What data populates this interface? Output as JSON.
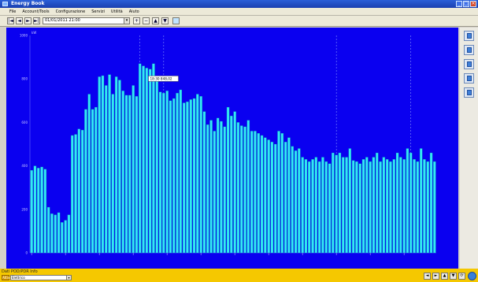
{
  "window": {
    "title": "Energy Book"
  },
  "menu": [
    "File",
    "Account/Tools",
    "Configurazione",
    "Servizi",
    "Utilità",
    "Aiuto"
  ],
  "toolbar": {
    "date_value": "01/01/2011 21:00",
    "buttons": [
      "|◄",
      "◄",
      "►",
      "►|"
    ],
    "right_buttons": [
      "+",
      "−",
      "▲",
      "▼"
    ]
  },
  "chart_data": {
    "type": "bar",
    "x": [
      "",
      "",
      "",
      "",
      "",
      "",
      "",
      "",
      "",
      "",
      "",
      "",
      "",
      "",
      "",
      "",
      "",
      "",
      "",
      "",
      "",
      "",
      "",
      "",
      "",
      "",
      "",
      "",
      "",
      "",
      "",
      "",
      "",
      "",
      "",
      "",
      "",
      "",
      "",
      "",
      "",
      "",
      "",
      "",
      "",
      "",
      "",
      "",
      "",
      "",
      "",
      "",
      "",
      "",
      "",
      "",
      "",
      "",
      "",
      "",
      "",
      "",
      "",
      "",
      "",
      "",
      "",
      "",
      "",
      "",
      "",
      "",
      "",
      "",
      "",
      "",
      "",
      "",
      "",
      "",
      "",
      "",
      "",
      "",
      "",
      "",
      "",
      "",
      "",
      "",
      "",
      "",
      "",
      "",
      "",
      "",
      "",
      "",
      "",
      "",
      "",
      "",
      "",
      "",
      "",
      "",
      "",
      "",
      "",
      "",
      "",
      "",
      "",
      "",
      "",
      "",
      "",
      "",
      "",
      ""
    ],
    "values": [
      380,
      400,
      390,
      395,
      385,
      210,
      180,
      175,
      185,
      140,
      150,
      175,
      540,
      545,
      570,
      565,
      660,
      730,
      660,
      670,
      810,
      815,
      770,
      820,
      730,
      810,
      795,
      745,
      725,
      725,
      770,
      720,
      870,
      860,
      850,
      845,
      870,
      800,
      740,
      735,
      745,
      700,
      710,
      735,
      750,
      690,
      695,
      705,
      710,
      730,
      720,
      650,
      590,
      610,
      560,
      620,
      605,
      580,
      670,
      630,
      650,
      600,
      585,
      580,
      610,
      560,
      560,
      550,
      540,
      530,
      520,
      510,
      500,
      560,
      550,
      510,
      530,
      490,
      470,
      480,
      440,
      430,
      420,
      430,
      440,
      420,
      440,
      420,
      410,
      460,
      450,
      460,
      440,
      440,
      480,
      425,
      420,
      410,
      430,
      440,
      420,
      440,
      460,
      420,
      440,
      430,
      420,
      430,
      460,
      440,
      430,
      480,
      460,
      430,
      420,
      480,
      430,
      420,
      460,
      420
    ],
    "ylim": [
      0,
      1000
    ],
    "y_ticks": [
      "1000",
      "800",
      "600",
      "400",
      "200",
      "0"
    ],
    "y_unit": "kW",
    "grid": false,
    "vertical_markers": [
      32,
      39,
      90,
      112
    ],
    "tooltip": {
      "text": "18:30 848,02",
      "index": 34
    },
    "colors": {
      "background": "#0a00f0",
      "bar_fill": "#33e8f4",
      "bar_edge": "#0090b0"
    }
  },
  "status": {
    "label": "Dati POD/PDR Info",
    "tag": "Attivo",
    "select_value": "Elettrico",
    "buttons": [
      "◄",
      "►",
      "▲",
      "▼",
      "⟳"
    ]
  }
}
